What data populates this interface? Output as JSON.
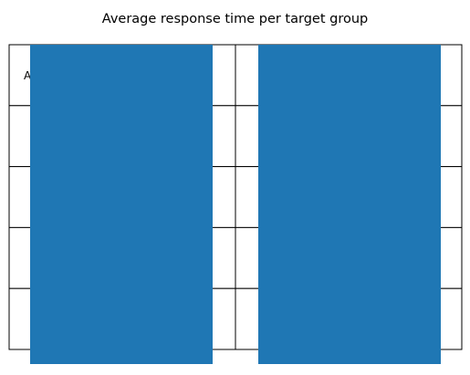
{
  "chart_data": {
    "type": "bar",
    "title": "Average response time per target group",
    "categories": [
      "",
      ""
    ],
    "values": [
      1,
      1
    ],
    "ylim": [
      0,
      1
    ],
    "legend": "none",
    "grid": false,
    "bar_color": "#1f77b4",
    "table": {
      "rows": 5,
      "cols": 2,
      "partial_cell_text": "A",
      "line_color": "#000000"
    }
  }
}
